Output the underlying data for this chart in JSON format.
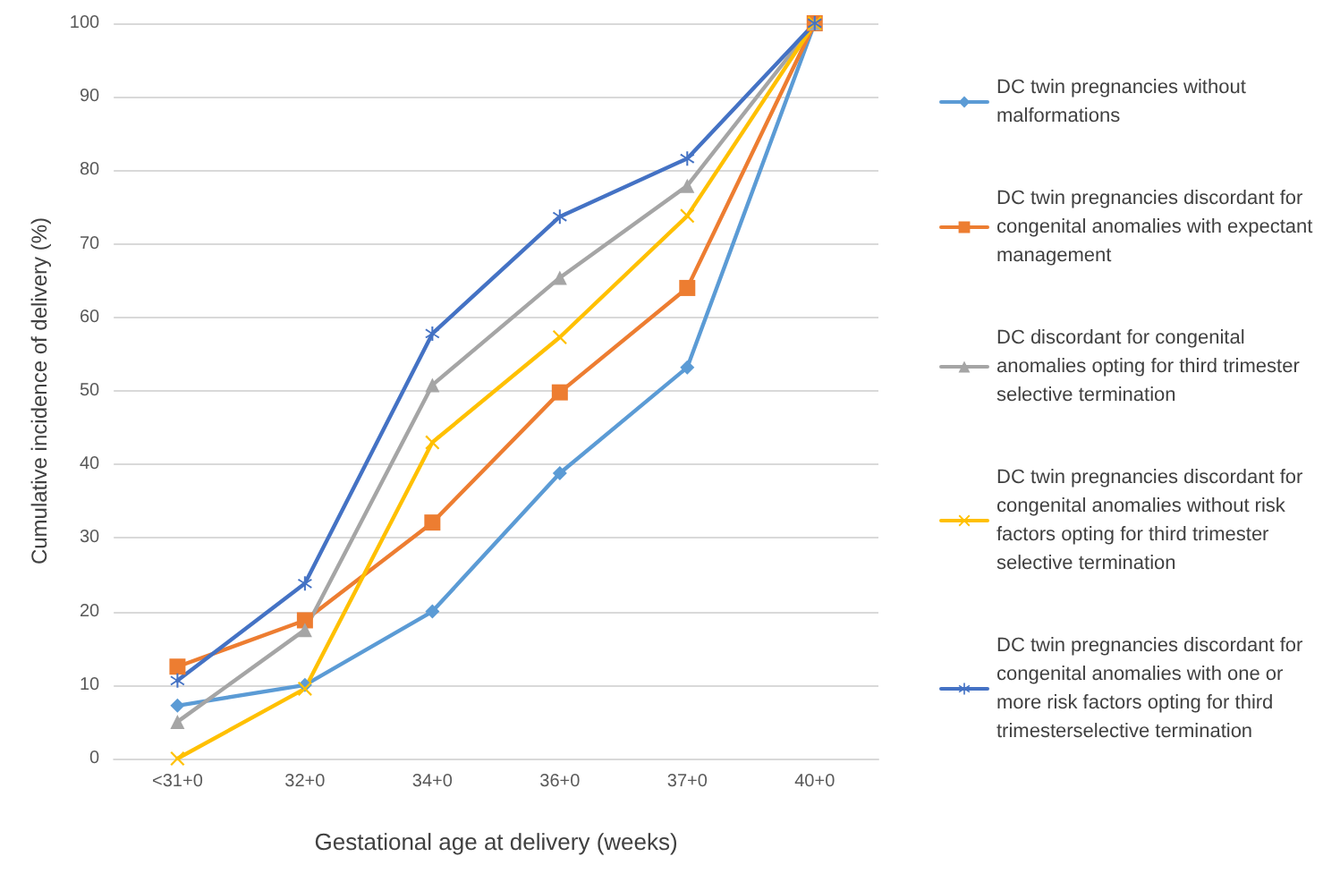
{
  "chart_data": {
    "type": "line",
    "xlabel": "Gestational age at delivery (weeks)",
    "ylabel": "Cumulative incidence of delivery (%)",
    "categories": [
      "<31+0",
      "32+0",
      "34+0",
      "36+0",
      "37+0",
      "40+0"
    ],
    "ylim": [
      0,
      100
    ],
    "yticks": [
      0,
      10,
      20,
      30,
      40,
      50,
      60,
      70,
      80,
      90,
      100
    ],
    "grid": "y",
    "legend": "right",
    "line_style": "solid",
    "series": [
      {
        "name": "DC twin pregnancies without malformations",
        "color": "#5b9bd5",
        "marker": "diamond",
        "values": [
          7.2,
          10,
          20,
          38.8,
          53.2,
          100
        ]
      },
      {
        "name": "DC twin pregnancies discordant for congenital anomalies with expectant management",
        "color": "#ed7d31",
        "marker": "square",
        "values": [
          12.5,
          18.8,
          32.1,
          49.8,
          64,
          100
        ]
      },
      {
        "name": "DC discordant for congenital anomalies opting for third trimester selective termination",
        "color": "#a5a5a5",
        "marker": "triangle",
        "values": [
          5,
          17.5,
          50.8,
          65.4,
          77.9,
          100
        ]
      },
      {
        "name": "DC twin pregnancies discordant for congenital anomalies without risk factors opting for third trimester selective termination",
        "color": "#ffc000",
        "marker": "cross",
        "values": [
          0,
          9.5,
          43,
          57.3,
          73.8,
          100
        ]
      },
      {
        "name": "DC twin pregnancies discordant for congenital anomalies with one or more risk factors opting for third trimesterselective termination",
        "color": "#4472c4",
        "marker": "star",
        "values": [
          10.6,
          23.8,
          57.8,
          73.7,
          81.6,
          100
        ]
      }
    ]
  }
}
